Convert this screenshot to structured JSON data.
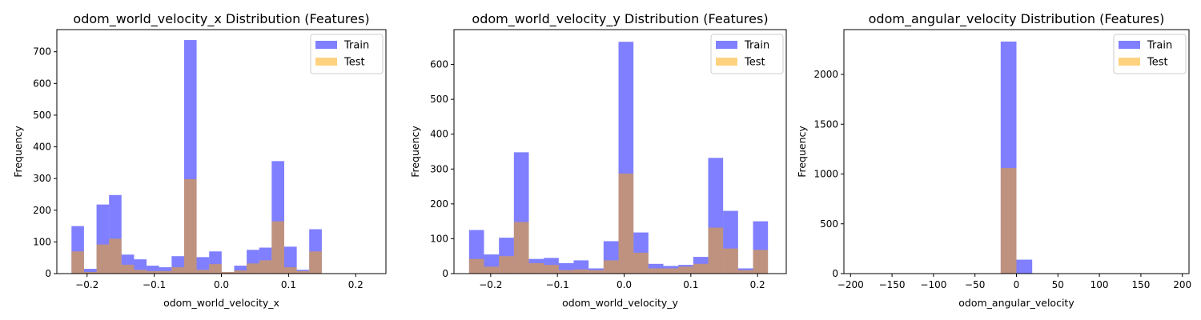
{
  "legend": {
    "train": "Train",
    "test": "Test"
  },
  "colors": {
    "train": "#0000ff",
    "test": "#ffa500",
    "train_alpha": 0.5,
    "test_alpha": 0.5
  },
  "chart_data": [
    {
      "type": "bar",
      "title": "odom_world_velocity_x Distribution (Features)",
      "xlabel": "odom_world_velocity_x",
      "ylabel": "Frequency",
      "xlim": [
        -0.245,
        0.245
      ],
      "ylim": [
        0,
        770
      ],
      "xticks": [
        -0.2,
        -0.1,
        0.0,
        0.1,
        0.2
      ],
      "xtick_labels": [
        "−0.2",
        "−0.1",
        "0.0",
        "0.1",
        "0.2"
      ],
      "yticks": [
        0,
        100,
        200,
        300,
        400,
        500,
        600,
        700
      ],
      "bin_edges": [
        -0.2232,
        -0.2046,
        -0.1859,
        -0.1673,
        -0.1487,
        -0.13,
        -0.1114,
        -0.0928,
        -0.0741,
        -0.0555,
        -0.0369,
        -0.0182,
        0.0004,
        0.019,
        0.0377,
        0.0563,
        0.0749,
        0.0936,
        0.1122,
        0.1308,
        0.1495,
        0.1681,
        0.1867,
        0.2054,
        0.224
      ],
      "series": [
        {
          "name": "Train",
          "values": [
            150,
            15,
            218,
            248,
            60,
            45,
            25,
            20,
            55,
            737,
            52,
            70,
            5,
            25,
            75,
            82,
            355,
            85,
            12,
            140,
            0,
            0,
            0,
            0
          ]
        },
        {
          "name": "Test",
          "values": [
            70,
            5,
            92,
            110,
            28,
            12,
            8,
            8,
            20,
            298,
            12,
            30,
            5,
            10,
            32,
            42,
            165,
            20,
            8,
            70,
            0,
            0,
            0,
            0
          ]
        }
      ],
      "grid": false,
      "legend_position": "top-right"
    },
    {
      "type": "bar",
      "title": "odom_world_velocity_y Distribution (Features)",
      "xlabel": "odom_world_velocity_y",
      "ylabel": "Frequency",
      "xlim": [
        -0.255,
        0.243
      ],
      "ylim": [
        0,
        700
      ],
      "xticks": [
        -0.2,
        -0.1,
        0.0,
        0.1,
        0.2
      ],
      "xtick_labels": [
        "−0.2",
        "−0.1",
        "0.0",
        "0.1",
        "0.2"
      ],
      "yticks": [
        0,
        100,
        200,
        300,
        400,
        500,
        600
      ],
      "bin_edges": [
        -0.2324,
        -0.21,
        -0.1876,
        -0.1652,
        -0.1428,
        -0.1204,
        -0.098,
        -0.0756,
        -0.0532,
        -0.0308,
        -0.0084,
        0.014,
        0.0364,
        0.0588,
        0.0812,
        0.1036,
        0.126,
        0.1484,
        0.1708,
        0.1932,
        0.2156
      ],
      "series": [
        {
          "name": "Train",
          "values": [
            125,
            55,
            103,
            348,
            42,
            45,
            30,
            38,
            15,
            93,
            665,
            118,
            28,
            22,
            25,
            48,
            332,
            180,
            15,
            150
          ]
        },
        {
          "name": "Test",
          "values": [
            42,
            20,
            50,
            148,
            30,
            25,
            10,
            12,
            10,
            38,
            287,
            60,
            15,
            15,
            20,
            28,
            132,
            72,
            10,
            68
          ]
        }
      ],
      "grid": false,
      "legend_position": "top-right"
    },
    {
      "type": "bar",
      "title": "odom_angular_velocity Distribution (Features)",
      "xlabel": "odom_angular_velocity",
      "ylabel": "Frequency",
      "xlim": [
        -208,
        208
      ],
      "ylim": [
        0,
        2450
      ],
      "xticks": [
        -200,
        -150,
        -100,
        -50,
        0,
        50,
        100,
        150,
        200
      ],
      "xtick_labels": [
        "−200",
        "−150",
        "−100",
        "−50",
        "0",
        "50",
        "100",
        "150",
        "200"
      ],
      "yticks": [
        0,
        500,
        1000,
        1500,
        2000
      ],
      "bin_edges": [
        -190,
        -171,
        -152,
        -133,
        -114,
        -95,
        -76,
        -57,
        -38,
        -19,
        0,
        19,
        38,
        57,
        76,
        95,
        114,
        133,
        152,
        171,
        190
      ],
      "series": [
        {
          "name": "Train",
          "values": [
            3,
            0,
            0,
            0,
            0,
            0,
            0,
            0,
            0,
            2330,
            140,
            0,
            0,
            0,
            0,
            0,
            0,
            0,
            0,
            3
          ]
        },
        {
          "name": "Test",
          "values": [
            0,
            0,
            0,
            0,
            0,
            0,
            0,
            0,
            0,
            1060,
            0,
            0,
            0,
            0,
            0,
            0,
            0,
            0,
            0,
            0
          ]
        }
      ],
      "grid": false,
      "legend_position": "top-right"
    }
  ]
}
